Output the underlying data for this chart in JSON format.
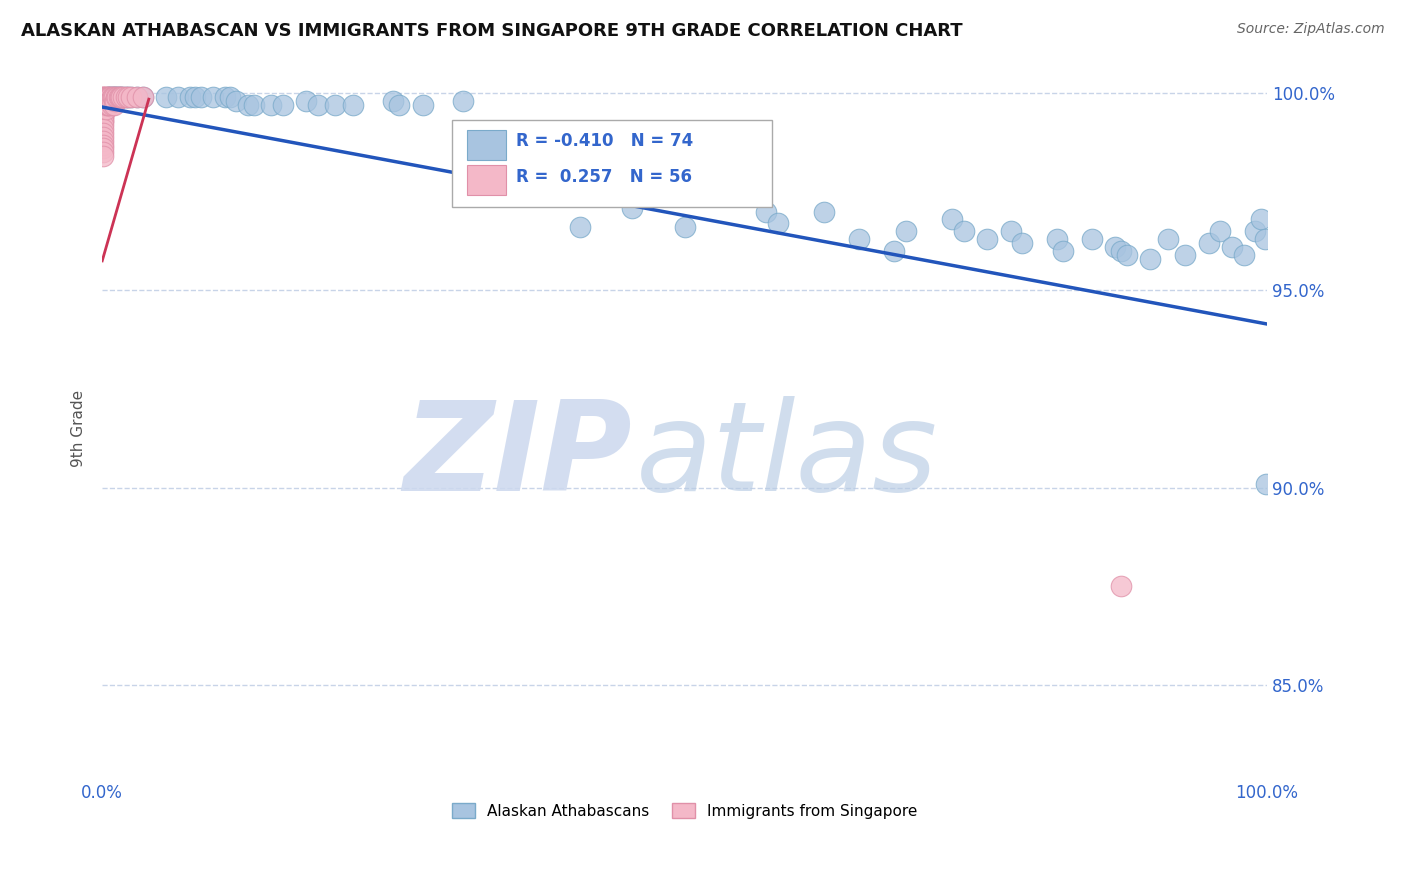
{
  "title": "ALASKAN ATHABASCAN VS IMMIGRANTS FROM SINGAPORE 9TH GRADE CORRELATION CHART",
  "source_text": "Source: ZipAtlas.com",
  "ylabel": "9th Grade",
  "R_blue": -0.41,
  "N_blue": 74,
  "R_pink": 0.257,
  "N_pink": 56,
  "blue_color": "#a8c4e0",
  "blue_edge_color": "#7aaaca",
  "pink_color": "#f4b8c8",
  "pink_edge_color": "#e090a8",
  "trendline_color": "#2255bb",
  "pink_trendline_color": "#cc3355",
  "watermark_zip_color": "#ccd8ee",
  "watermark_atlas_color": "#b8cce4",
  "grid_color": "#c8d4e8",
  "background_color": "#ffffff",
  "legend_blue_label": "Alaskan Athabascans",
  "legend_pink_label": "Immigrants from Singapore",
  "blue_scatter_x": [
    0.005,
    0.006,
    0.007,
    0.008,
    0.009,
    0.01,
    0.011,
    0.012,
    0.013,
    0.014,
    0.015,
    0.016,
    0.018,
    0.02,
    0.022,
    0.025,
    0.03,
    0.035,
    0.055,
    0.065,
    0.075,
    0.08,
    0.085,
    0.095,
    0.105,
    0.11,
    0.115,
    0.125,
    0.13,
    0.145,
    0.155,
    0.175,
    0.185,
    0.2,
    0.215,
    0.25,
    0.255,
    0.275,
    0.31,
    0.345,
    0.39,
    0.41,
    0.42,
    0.455,
    0.5,
    0.54,
    0.57,
    0.58,
    0.62,
    0.65,
    0.68,
    0.69,
    0.73,
    0.74,
    0.76,
    0.78,
    0.79,
    0.82,
    0.825,
    0.85,
    0.87,
    0.875,
    0.88,
    0.9,
    0.915,
    0.93,
    0.95,
    0.96,
    0.97,
    0.98,
    0.99,
    0.995,
    0.998,
    0.999
  ],
  "blue_scatter_y": [
    0.999,
    0.999,
    0.999,
    0.999,
    0.999,
    0.999,
    0.999,
    0.999,
    0.999,
    0.999,
    0.999,
    0.999,
    0.999,
    0.999,
    0.999,
    0.999,
    0.999,
    0.999,
    0.999,
    0.999,
    0.999,
    0.999,
    0.999,
    0.999,
    0.999,
    0.999,
    0.998,
    0.997,
    0.997,
    0.997,
    0.997,
    0.998,
    0.997,
    0.997,
    0.997,
    0.998,
    0.997,
    0.997,
    0.998,
    0.976,
    0.974,
    0.966,
    0.975,
    0.971,
    0.966,
    0.988,
    0.97,
    0.967,
    0.97,
    0.963,
    0.96,
    0.965,
    0.968,
    0.965,
    0.963,
    0.965,
    0.962,
    0.963,
    0.96,
    0.963,
    0.961,
    0.96,
    0.959,
    0.958,
    0.963,
    0.959,
    0.962,
    0.965,
    0.961,
    0.959,
    0.965,
    0.968,
    0.963,
    0.901
  ],
  "pink_scatter_x": [
    0.001,
    0.001,
    0.001,
    0.001,
    0.001,
    0.001,
    0.001,
    0.001,
    0.001,
    0.001,
    0.001,
    0.001,
    0.001,
    0.001,
    0.001,
    0.001,
    0.001,
    0.001,
    0.001,
    0.001,
    0.001,
    0.001,
    0.001,
    0.001,
    0.001,
    0.002,
    0.002,
    0.003,
    0.003,
    0.003,
    0.004,
    0.004,
    0.005,
    0.005,
    0.006,
    0.006,
    0.007,
    0.007,
    0.008,
    0.008,
    0.009,
    0.01,
    0.01,
    0.011,
    0.012,
    0.013,
    0.014,
    0.015,
    0.016,
    0.018,
    0.02,
    0.022,
    0.025,
    0.03,
    0.035,
    0.875
  ],
  "pink_scatter_y": [
    0.999,
    0.999,
    0.999,
    0.998,
    0.998,
    0.997,
    0.997,
    0.997,
    0.996,
    0.996,
    0.995,
    0.995,
    0.994,
    0.994,
    0.993,
    0.993,
    0.992,
    0.991,
    0.99,
    0.989,
    0.988,
    0.987,
    0.986,
    0.985,
    0.984,
    0.999,
    0.997,
    0.999,
    0.998,
    0.996,
    0.999,
    0.997,
    0.999,
    0.997,
    0.999,
    0.997,
    0.999,
    0.998,
    0.999,
    0.997,
    0.999,
    0.999,
    0.997,
    0.998,
    0.999,
    0.999,
    0.999,
    0.999,
    0.999,
    0.999,
    0.999,
    0.999,
    0.999,
    0.999,
    0.999,
    0.875
  ],
  "xlim": [
    0.0,
    1.0
  ],
  "ylim": [
    0.826,
    1.004
  ],
  "yticks": [
    0.85,
    0.9,
    0.95,
    1.0
  ],
  "ytick_labels": [
    "85.0%",
    "90.0%",
    "95.0%",
    "100.0%"
  ],
  "xticks": [
    0.0,
    1.0
  ],
  "xtick_labels": [
    "0.0%",
    "100.0%"
  ],
  "trendline_x": [
    0.0,
    1.0
  ],
  "trendline_y": [
    0.9965,
    0.9415
  ],
  "pink_trendline_x": [
    0.0,
    0.04
  ],
  "pink_trendline_y": [
    0.9575,
    0.9985
  ]
}
